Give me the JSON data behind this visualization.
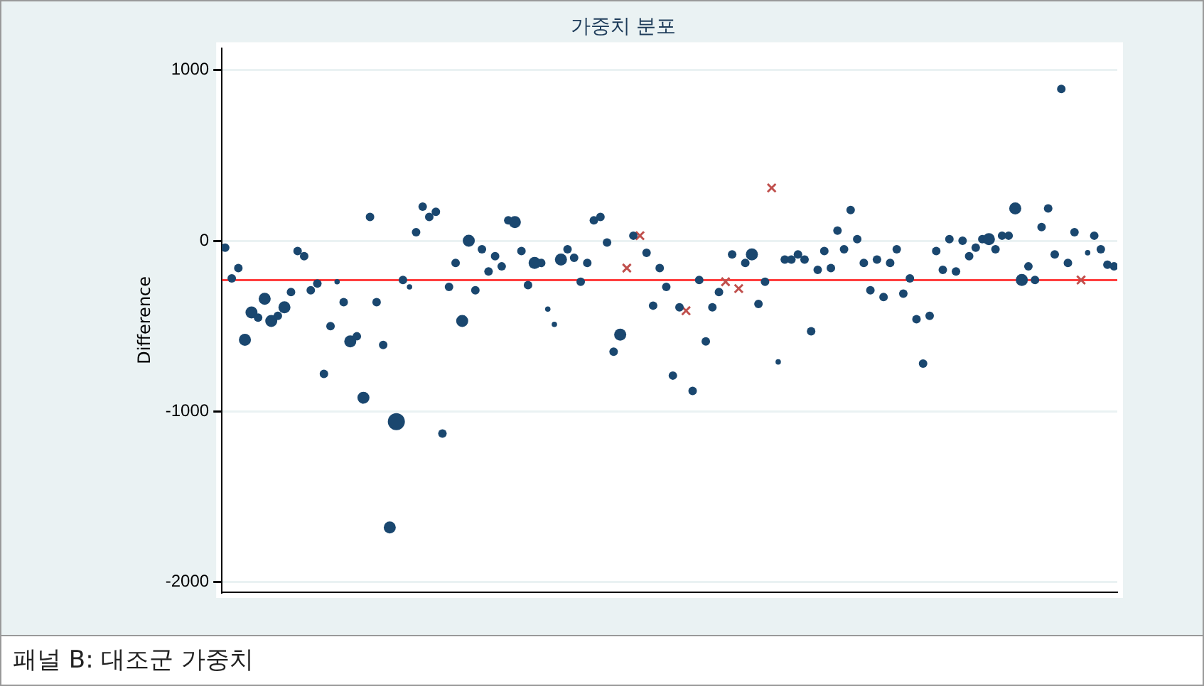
{
  "chart_data": {
    "type": "bubble",
    "title": "가중치 분포",
    "ylabel": "Difference",
    "categories": [
      null,
      null,
      null,
      null,
      null,
      null,
      null,
      null,
      null,
      null,
      null,
      null,
      null,
      null,
      null,
      null,
      null,
      null,
      null,
      null,
      null,
      null,
      null,
      null,
      null,
      null,
      null,
      null,
      null,
      null,
      null,
      null,
      null,
      null,
      null,
      null,
      null,
      null,
      null,
      null,
      null,
      null,
      null,
      null,
      null,
      null,
      null,
      null,
      null,
      null,
      null,
      null,
      null,
      null,
      null,
      null,
      null,
      null,
      null,
      null,
      null,
      null,
      null,
      null,
      null,
      null,
      null,
      null,
      null,
      null,
      null,
      null,
      null,
      null,
      null,
      null,
      null,
      null,
      null,
      null,
      null,
      null,
      null,
      null,
      null,
      null,
      null,
      null,
      null,
      null,
      null,
      null,
      null,
      null,
      null,
      null,
      null,
      null,
      null,
      null,
      null,
      null,
      null,
      null,
      null,
      null,
      null,
      null,
      null,
      null,
      null,
      null,
      null,
      null,
      null,
      null,
      null,
      null,
      null,
      null,
      null,
      null,
      null,
      null,
      null,
      null,
      null,
      null,
      null,
      null,
      null,
      null,
      null,
      null,
      null,
      null
    ],
    "series": [
      {
        "color": "#1a476f",
        "values": [
          -40,
          -220,
          -160,
          -580,
          -420,
          -450,
          -340,
          -470,
          -440,
          -390,
          -300,
          -60,
          -90,
          -290,
          -250,
          -780,
          -500,
          -240,
          -360,
          -590,
          -560,
          -920,
          140,
          -360,
          -610,
          -1680,
          -1060,
          -230,
          -270,
          50,
          200,
          140,
          170,
          -1130,
          -270,
          -130,
          -470,
          0,
          -290,
          -50,
          -180,
          -90,
          -150,
          120,
          110,
          -60,
          -260,
          -130,
          -130,
          -400,
          -490,
          -110,
          -50,
          -100,
          -240,
          -130,
          120,
          140,
          -10,
          -650,
          -550,
          null,
          30,
          null,
          -70,
          -380,
          -160,
          -270,
          -790,
          -390,
          null,
          -880,
          -230,
          -590,
          -390,
          -300,
          null,
          -80,
          null,
          -130,
          -80,
          -370,
          -240,
          null,
          -710,
          -110,
          -110,
          -80,
          -110,
          -530,
          -170,
          -60,
          -160,
          60,
          -50,
          180,
          10,
          -130,
          -290,
          -110,
          -330,
          -130,
          -50,
          -310,
          -220,
          -460,
          -720,
          -440,
          -60,
          -170,
          10,
          -180,
          0,
          -90,
          -40,
          10,
          10,
          -50,
          30,
          30,
          190,
          -230,
          -150,
          -230,
          80,
          190,
          -80,
          890,
          -130,
          50,
          null,
          -70,
          30,
          -50,
          -140,
          -150
        ],
        "sizes": [
          0.25,
          0.25,
          0.25,
          0.5,
          0.5,
          0.25,
          0.5,
          0.5,
          0.25,
          0.5,
          0.25,
          0.25,
          0.25,
          0.25,
          0.25,
          0.25,
          0.25,
          0.1,
          0.25,
          0.5,
          0.25,
          0.5,
          0.25,
          0.25,
          0.25,
          0.5,
          1,
          0.25,
          0.1,
          0.25,
          0.25,
          0.25,
          0.25,
          0.25,
          0.25,
          0.25,
          0.5,
          0.5,
          0.25,
          0.25,
          0.25,
          0.25,
          0.25,
          0.25,
          0.5,
          0.25,
          0.25,
          0.5,
          0.25,
          0.1,
          0.1,
          0.5,
          0.25,
          0.25,
          0.25,
          0.25,
          0.25,
          0.25,
          0.25,
          0.25,
          0.5,
          null,
          0.25,
          null,
          0.25,
          0.25,
          0.25,
          0.25,
          0.25,
          0.25,
          null,
          0.25,
          0.25,
          0.25,
          0.25,
          0.25,
          null,
          0.25,
          null,
          0.25,
          0.5,
          0.25,
          0.25,
          null,
          0.1,
          0.25,
          0.25,
          0.25,
          0.25,
          0.25,
          0.25,
          0.25,
          0.25,
          0.25,
          0.25,
          0.25,
          0.25,
          0.25,
          0.25,
          0.25,
          0.25,
          0.25,
          0.25,
          0.25,
          0.25,
          0.25,
          0.25,
          0.25,
          0.25,
          0.25,
          0.25,
          0.25,
          0.25,
          0.25,
          0.25,
          0.25,
          0.5,
          0.25,
          0.25,
          0.25,
          0.5,
          0.5,
          0.25,
          0.25,
          0.25,
          0.25,
          0.25,
          0.25,
          0.25,
          0.25,
          null,
          0.1,
          0.25,
          0.25,
          0.25,
          0.25
        ]
      },
      {
        "type": "scatter",
        "marker": "cross",
        "color": "#c0504d",
        "values": [
          null,
          null,
          null,
          null,
          null,
          null,
          null,
          null,
          null,
          null,
          null,
          null,
          null,
          null,
          null,
          null,
          null,
          null,
          null,
          null,
          null,
          null,
          null,
          null,
          null,
          null,
          null,
          null,
          null,
          null,
          null,
          null,
          null,
          null,
          null,
          null,
          null,
          null,
          null,
          null,
          null,
          null,
          null,
          null,
          null,
          null,
          null,
          null,
          null,
          null,
          null,
          null,
          null,
          null,
          null,
          null,
          null,
          null,
          null,
          null,
          null,
          -160,
          null,
          30,
          null,
          null,
          null,
          null,
          null,
          null,
          -410,
          null,
          null,
          null,
          null,
          null,
          -240,
          null,
          -280,
          null,
          null,
          null,
          null,
          310,
          null,
          null,
          null,
          null,
          null,
          null,
          null,
          null,
          null,
          null,
          null,
          null,
          null,
          null,
          null,
          null,
          null,
          null,
          null,
          null,
          null,
          null,
          null,
          null,
          null,
          null,
          null,
          null,
          null,
          null,
          null,
          null,
          null,
          null,
          null,
          null,
          null,
          null,
          null,
          null,
          null,
          null,
          null,
          null,
          null,
          null,
          -230,
          null,
          null,
          null,
          null,
          null
        ]
      }
    ],
    "ylim": [
      -2060,
      1130
    ],
    "yticks": [
      -2000,
      -1000,
      0,
      1000
    ],
    "grid": "y",
    "tick_labels": "y",
    "legend": false,
    "ref_lines": [
      {
        "axis": "y",
        "value": -230,
        "color": "#ff0000"
      }
    ],
    "annotations": [
      "패널 B: 대조군 가중치"
    ]
  }
}
